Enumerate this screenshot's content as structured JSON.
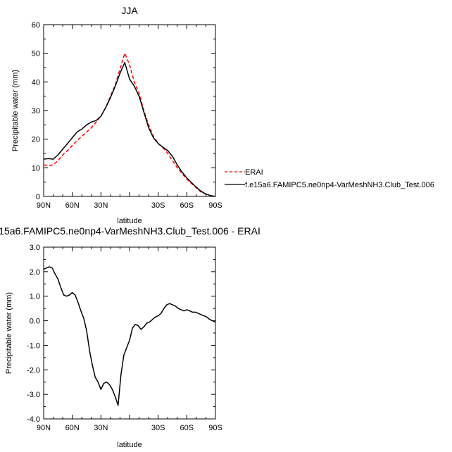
{
  "chart_data": [
    {
      "type": "line",
      "title": "JJA",
      "xlabel": "latitude",
      "ylabel": "Precipitable water (mm)",
      "xlim": [
        90,
        -90
      ],
      "ylim": [
        0,
        60
      ],
      "x_ticks": [
        90,
        60,
        30,
        0,
        -30,
        -60,
        -90
      ],
      "x_tick_labels": [
        "90N",
        "60N",
        "30N",
        "",
        "30S",
        "60S",
        "90S"
      ],
      "y_ticks": [
        0,
        10,
        20,
        30,
        40,
        50,
        60
      ],
      "y_tick_labels": [
        "0",
        "10",
        "20",
        "30",
        "40",
        "50",
        "60"
      ],
      "grid": false,
      "legend": "outside-right",
      "series": [
        {
          "name": "ERAI",
          "color": "#ff0000",
          "dash": "dashed",
          "x": [
            90,
            85,
            80,
            75,
            70,
            65,
            60,
            55,
            50,
            45,
            40,
            35,
            30,
            25,
            20,
            15,
            10,
            5,
            0,
            -5,
            -10,
            -15,
            -20,
            -25,
            -30,
            -35,
            -40,
            -45,
            -50,
            -55,
            -60,
            -65,
            -70,
            -75,
            -80,
            -85,
            -90
          ],
          "values": [
            11,
            10.8,
            11,
            12.5,
            14.5,
            16,
            17.8,
            19.5,
            21,
            22.5,
            24,
            26,
            28,
            31,
            35,
            39,
            44.5,
            50,
            46,
            40,
            36,
            30,
            25,
            21,
            18.5,
            17,
            15,
            12.5,
            10,
            8,
            6,
            4.5,
            3,
            1.5,
            0.8,
            0.3,
            0
          ]
        },
        {
          "name": "f.e15a6.FAMIPC5.ne0np4-VarMeshNH3.Club_Test.006",
          "color": "#000000",
          "dash": "solid",
          "x": [
            90,
            85,
            80,
            75,
            70,
            65,
            60,
            55,
            50,
            45,
            40,
            35,
            30,
            25,
            20,
            15,
            10,
            5,
            0,
            -5,
            -10,
            -15,
            -20,
            -25,
            -30,
            -35,
            -40,
            -45,
            -50,
            -55,
            -60,
            -65,
            -70,
            -75,
            -80,
            -85,
            -90
          ],
          "values": [
            13,
            13.2,
            13,
            14.5,
            16.5,
            18.5,
            20.5,
            22.5,
            23.5,
            25,
            26,
            26.5,
            28,
            31,
            34.5,
            38.5,
            43,
            46.8,
            41,
            38.5,
            35,
            29.5,
            24,
            20.5,
            18.5,
            17.2,
            16,
            14,
            11,
            8.5,
            6.5,
            4.8,
            3.2,
            1.8,
            0.8,
            0.3,
            0
          ]
        }
      ]
    },
    {
      "type": "line",
      "title": "15a6.FAMIPC5.ne0np4-VarMeshNH3.Club_Test.006 - ERAI",
      "xlabel": "latitude",
      "ylabel": "Precipitable water (mm)",
      "xlim": [
        90,
        -90
      ],
      "ylim": [
        -4,
        3
      ],
      "x_ticks": [
        90,
        60,
        30,
        0,
        -30,
        -60,
        -90
      ],
      "x_tick_labels": [
        "90N",
        "60N",
        "30N",
        "",
        "30S",
        "60S",
        "90S"
      ],
      "y_ticks": [
        -4,
        -3,
        -2,
        -1,
        0,
        1,
        2,
        3
      ],
      "y_tick_labels": [
        "-4.0",
        "-3.0",
        "-2.0",
        "-1.0",
        "0.0",
        "1.0",
        "2.0",
        "3.0"
      ],
      "grid": false,
      "series": [
        {
          "color": "#000000",
          "dash": "solid",
          "x": [
            90,
            87,
            84,
            81,
            78,
            75,
            72,
            69,
            66,
            63,
            60,
            57,
            54,
            51,
            48,
            45,
            42,
            39,
            36,
            33,
            30,
            27,
            24,
            21,
            18,
            15,
            12,
            9,
            6,
            3,
            0,
            -3,
            -6,
            -9,
            -12,
            -15,
            -18,
            -21,
            -24,
            -27,
            -30,
            -33,
            -36,
            -39,
            -42,
            -45,
            -48,
            -51,
            -54,
            -57,
            -60,
            -63,
            -66,
            -69,
            -72,
            -75,
            -78,
            -81,
            -84,
            -87,
            -90
          ],
          "values": [
            2.1,
            2.15,
            2.2,
            2.15,
            1.9,
            1.7,
            1.35,
            1.05,
            1.0,
            1.05,
            1.15,
            1.05,
            0.75,
            0.4,
            0.1,
            -0.4,
            -1.2,
            -1.8,
            -2.3,
            -2.5,
            -2.8,
            -2.55,
            -2.5,
            -2.6,
            -2.8,
            -3.1,
            -3.45,
            -2.2,
            -1.4,
            -1.1,
            -0.8,
            -0.3,
            -0.15,
            -0.2,
            -0.35,
            -0.25,
            -0.1,
            -0.05,
            0.05,
            0.15,
            0.2,
            0.3,
            0.5,
            0.65,
            0.7,
            0.65,
            0.6,
            0.5,
            0.45,
            0.4,
            0.45,
            0.4,
            0.35,
            0.35,
            0.3,
            0.25,
            0.2,
            0.15,
            0.05,
            0.0,
            -0.05
          ]
        }
      ]
    }
  ]
}
